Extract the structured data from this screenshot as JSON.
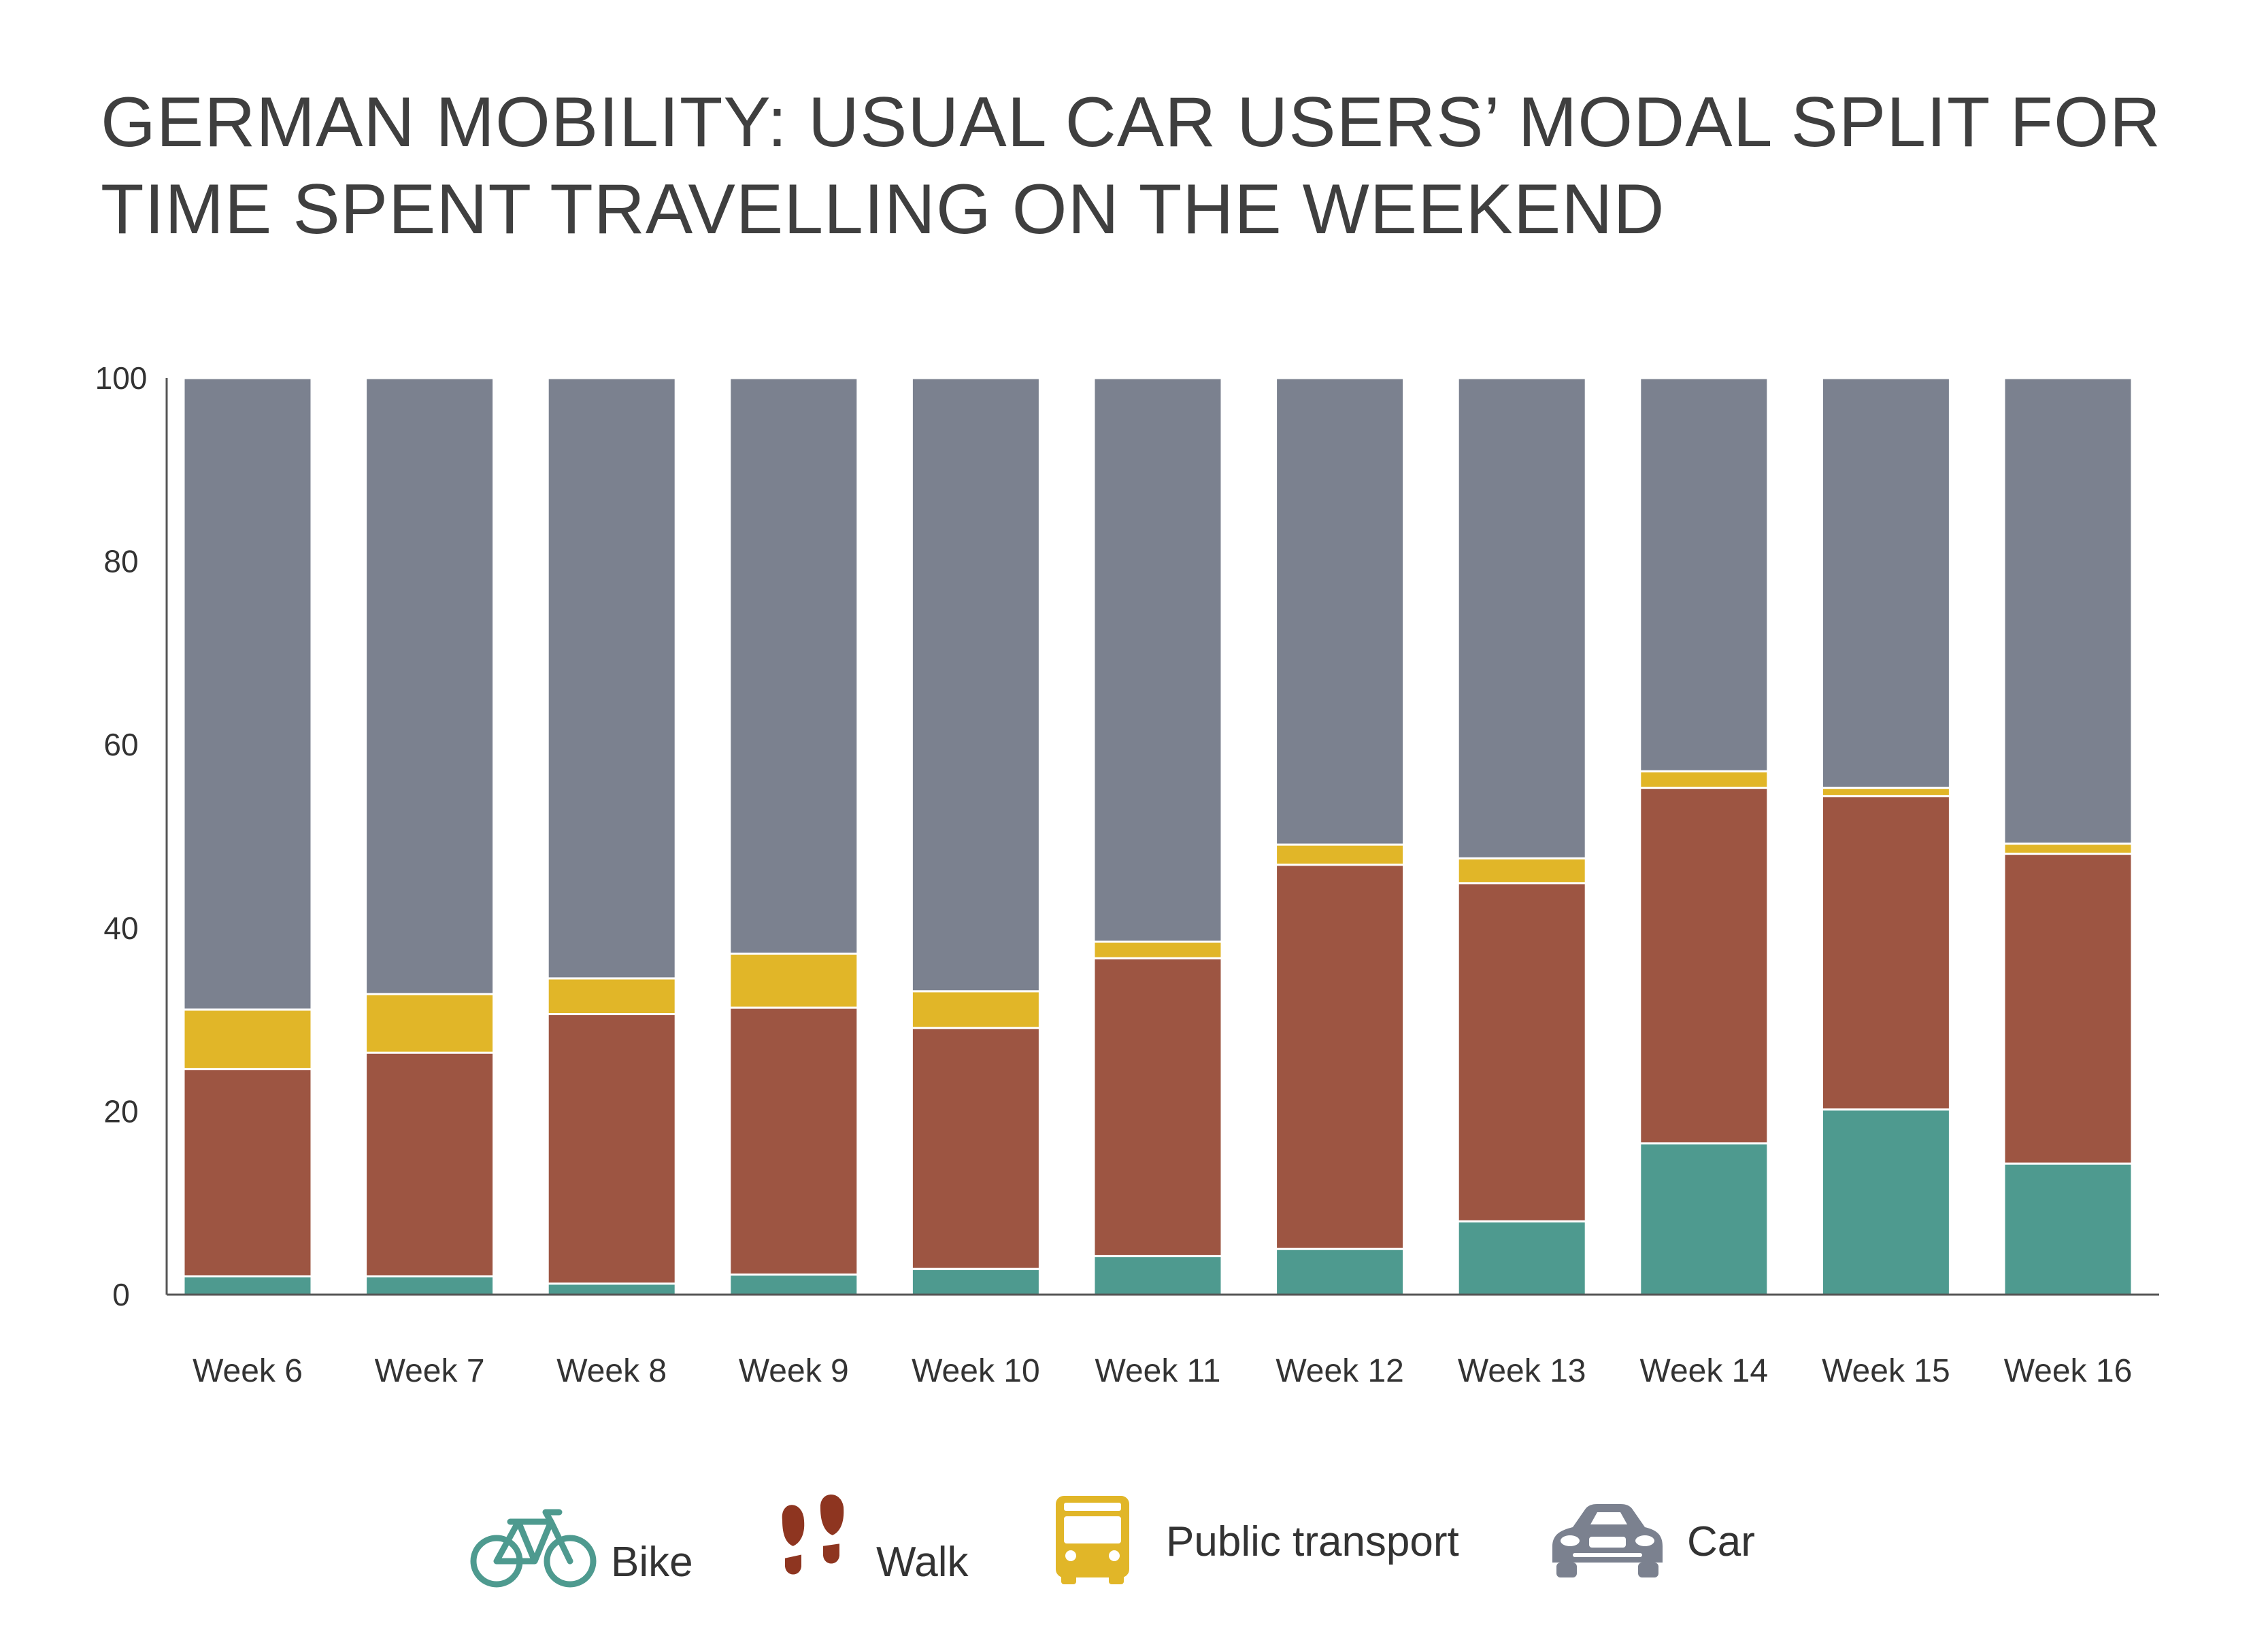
{
  "chart_data": {
    "type": "bar",
    "stacked": true,
    "title": "GERMAN MOBILITY: USUAL CAR USERS’ MODAL SPLIT FOR TIME SPENT TRAVELLING ON THE WEEKEND",
    "xlabel": "",
    "ylabel": "",
    "ylim": [
      0,
      100
    ],
    "y_ticks": [
      0,
      20,
      40,
      60,
      80,
      100
    ],
    "grid": false,
    "legend_position": "bottom",
    "categories": [
      "Week 6",
      "Week 7",
      "Week 8",
      "Week 9",
      "Week 10",
      "Week 11",
      "Week 12",
      "Week 13",
      "Week 14",
      "Week 15",
      "Week 16"
    ],
    "series": [
      {
        "name": "Bike",
        "icon": "bike-icon",
        "color": "#4e9a8f",
        "values": [
          2,
          2,
          1.2,
          2.2,
          2.8,
          4.2,
          5,
          8,
          16.5,
          20.2,
          14.3
        ]
      },
      {
        "name": "Walk",
        "icon": "footprints-icon",
        "color": "#9d5542",
        "values": [
          22.6,
          24.4,
          29.4,
          29.1,
          26.3,
          32.5,
          41.9,
          36.9,
          38.8,
          34.2,
          33.8
        ]
      },
      {
        "name": "Public transport",
        "icon": "bus-icon",
        "color": "#e1b628",
        "values": [
          6.5,
          6.4,
          3.9,
          5.9,
          4,
          1.8,
          2.2,
          2.7,
          1.8,
          0.9,
          1.1
        ]
      },
      {
        "name": "Car",
        "icon": "car-icon",
        "color": "#7b818f",
        "values": [
          68.9,
          67.2,
          65.5,
          62.8,
          66.9,
          61.5,
          50.9,
          52.4,
          42.9,
          44.7,
          50.8
        ]
      }
    ]
  }
}
